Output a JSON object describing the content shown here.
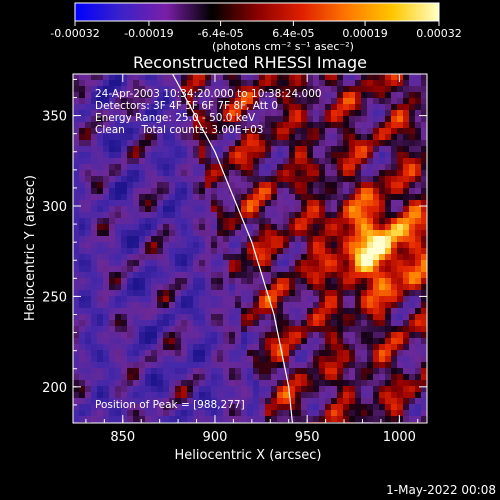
{
  "chart_data": {
    "type": "heatmap",
    "title": "Reconstructed RHESSI Image",
    "xlabel": "Heliocentric X (arcsec)",
    "ylabel": "Heliocentric Y (arcsec)",
    "xlim": [
      823,
      1015
    ],
    "ylim": [
      180,
      373
    ],
    "x_ticks": [
      850,
      900,
      950,
      1000
    ],
    "y_ticks": [
      200,
      250,
      300,
      350
    ],
    "colorbar": {
      "ticks": [
        "-0.00032",
        "-0.00019",
        "-6.4e-05",
        "6.4e-05",
        "0.00019",
        "0.00032"
      ],
      "range": [
        -0.00032,
        0.00032
      ],
      "unit_label": "(photons cm⁻² s⁻¹ asec⁻²)",
      "colors": [
        "#0000ff",
        "#3a22c8",
        "#7a1fa8",
        "#000000",
        "#8a0000",
        "#e02000",
        "#ff7a00",
        "#ffc800",
        "#ffffc8"
      ]
    },
    "annotations": [
      "24-Apr-2003 10:34:20.000 to 10:38:24.000",
      "Detectors: 3F 4F 5F 6F 7F 8F, Att 0",
      "Energy Range: 25.0 - 50.0 keV",
      "Clean     Total counts: 3.00E+03"
    ],
    "peak_label": "Position of Peak = [988,277]",
    "peak": [
      988,
      277
    ],
    "limb_curve": [
      [
        877,
        373
      ],
      [
        900,
        330
      ],
      [
        920,
        280
      ],
      [
        932,
        240
      ],
      [
        940,
        200
      ],
      [
        942,
        180
      ]
    ]
  },
  "footer": {
    "timestamp": "1-May-2022 00:08"
  }
}
